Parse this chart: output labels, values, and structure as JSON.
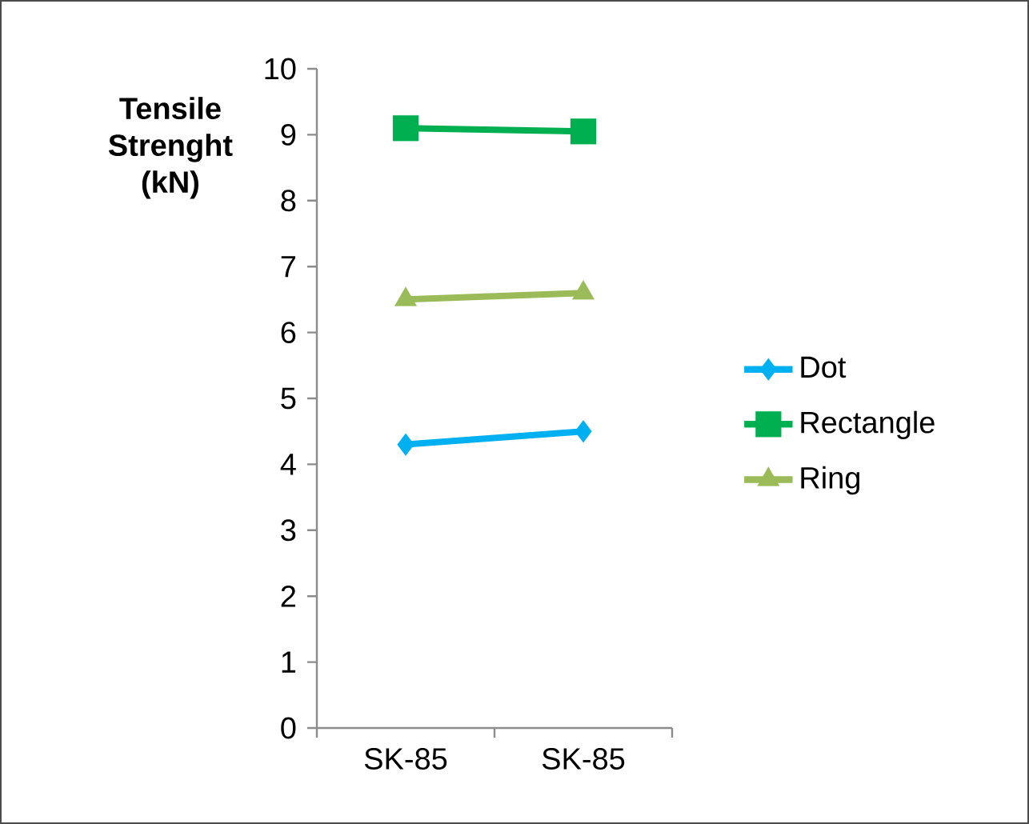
{
  "chart_data": {
    "type": "line",
    "ylabel": "Tensile Strenght (kN)",
    "categories": [
      "SK-85",
      "SK-85"
    ],
    "series": [
      {
        "name": "Dot",
        "color": "#00b0f0",
        "marker": "diamond",
        "values": [
          4.3,
          4.5
        ]
      },
      {
        "name": "Rectangle",
        "color": "#00b050",
        "marker": "square",
        "values": [
          9.1,
          9.05
        ]
      },
      {
        "name": "Ring",
        "color": "#9bbb59",
        "marker": "triangle",
        "values": [
          6.5,
          6.6
        ]
      }
    ],
    "ylim": [
      0,
      10
    ],
    "yticks": [
      0,
      1,
      2,
      3,
      4,
      5,
      6,
      7,
      8,
      9,
      10
    ],
    "grid": false,
    "legend": "right"
  }
}
